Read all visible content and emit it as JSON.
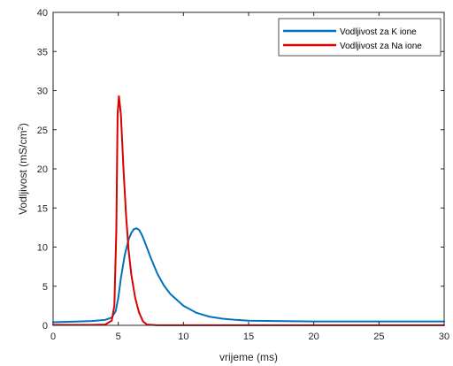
{
  "chart_data": {
    "type": "line",
    "xlabel": "vrijeme (ms)",
    "ylabel_main": "Vodljivost (mS/cm",
    "ylabel_sup": "2",
    "ylabel_tail": ")",
    "xlim": [
      0,
      30
    ],
    "ylim": [
      0,
      40
    ],
    "xticks": [
      0,
      5,
      10,
      15,
      20,
      25,
      30
    ],
    "yticks": [
      0,
      5,
      10,
      15,
      20,
      25,
      30,
      35,
      40
    ],
    "grid": false,
    "legend_position": "top-right",
    "series": [
      {
        "name": "Vodljivost za K ione",
        "color": "#0072BD",
        "x": [
          0,
          2,
          3,
          4,
          4.5,
          4.8,
          5.0,
          5.2,
          5.5,
          5.8,
          6.0,
          6.2,
          6.4,
          6.6,
          6.8,
          7.0,
          7.5,
          8,
          8.5,
          9,
          10,
          11,
          12,
          13,
          14,
          15,
          17,
          20,
          25,
          30
        ],
        "y": [
          0.4,
          0.5,
          0.55,
          0.7,
          1.0,
          1.8,
          3.5,
          6.0,
          9.0,
          11.0,
          11.8,
          12.3,
          12.4,
          12.2,
          11.6,
          10.8,
          8.6,
          6.6,
          5.1,
          4.0,
          2.5,
          1.6,
          1.1,
          0.85,
          0.7,
          0.6,
          0.55,
          0.5,
          0.5,
          0.5
        ]
      },
      {
        "name": "Vodljivost za Na ione",
        "color": "#D90000",
        "x": [
          0,
          3,
          4,
          4.5,
          4.7,
          4.85,
          4.95,
          5.05,
          5.2,
          5.4,
          5.6,
          5.8,
          6.0,
          6.3,
          6.6,
          6.9,
          7.2,
          8,
          10,
          15,
          20,
          25,
          30
        ],
        "y": [
          0.05,
          0.05,
          0.1,
          0.6,
          2.5,
          12.0,
          27.0,
          29.3,
          27.0,
          20.0,
          14.0,
          9.5,
          6.5,
          3.5,
          1.6,
          0.5,
          0.1,
          0.02,
          0.01,
          0.01,
          0.01,
          0.01,
          0.01
        ]
      }
    ]
  }
}
